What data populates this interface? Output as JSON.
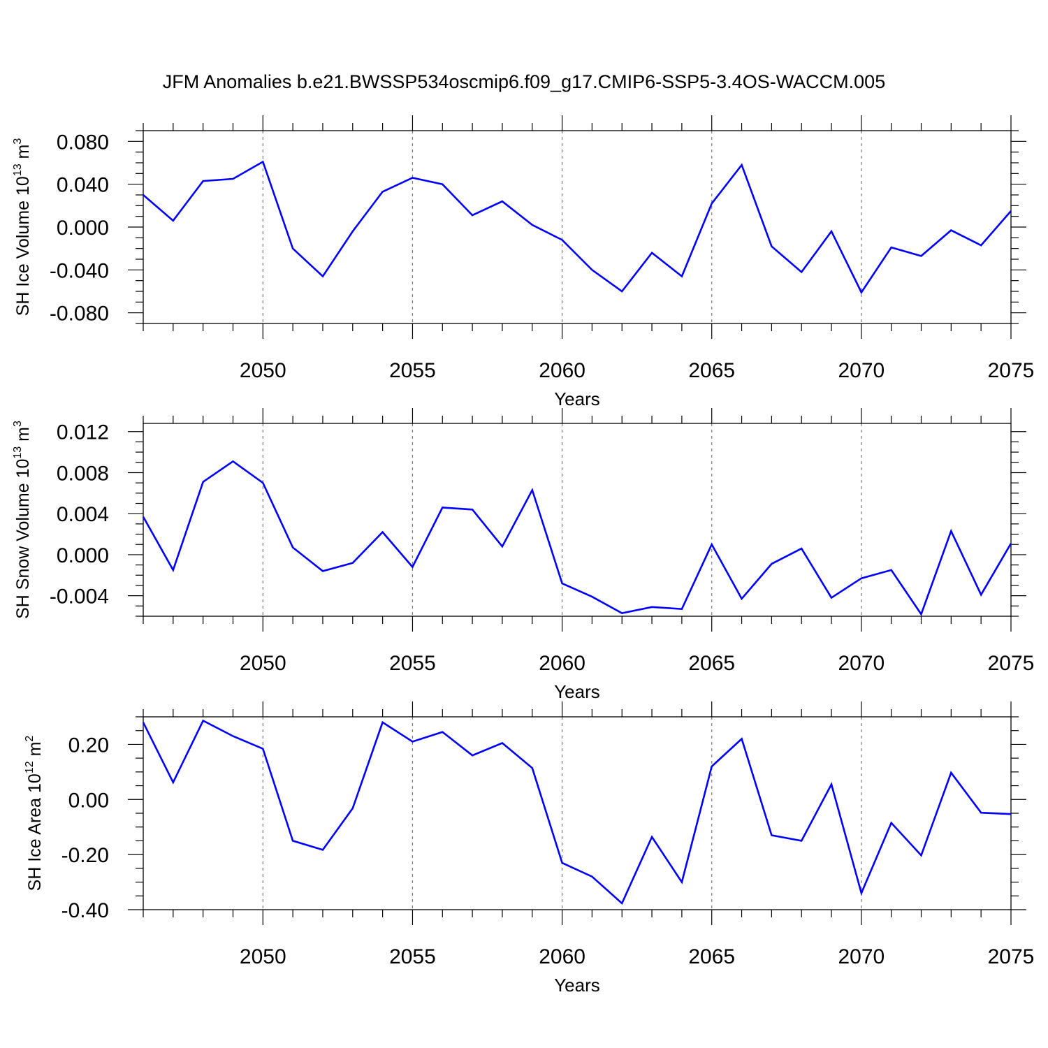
{
  "title": "JFM Anomalies b.e21.BWSSP534oscmip6.f09_g17.CMIP6-SSP5-3.4OS-WACCM.005",
  "line_color": "#0000ff",
  "chart_data": [
    {
      "type": "line",
      "name": "ice-volume",
      "ylabel": "SH Ice Volume 10",
      "ylabel_exp": "13",
      "ylabel_unit": "m",
      "ylabel_unit_exp": "3",
      "xlabel": "Years",
      "xlim": [
        2046,
        2075
      ],
      "ylim": [
        -0.09,
        0.09
      ],
      "xticks": [
        2050,
        2055,
        2060,
        2065,
        2070,
        2075
      ],
      "xtick_labels": [
        "2050",
        "2055",
        "2060",
        "2065",
        "2070",
        "2075"
      ],
      "yticks": [
        0.08,
        0.04,
        0.0,
        -0.04,
        -0.08
      ],
      "ytick_labels": [
        "0.080",
        "0.040",
        "0.000",
        "-0.040",
        "-0.080"
      ],
      "x": [
        2046,
        2047,
        2048,
        2049,
        2050,
        2051,
        2052,
        2053,
        2054,
        2055,
        2056,
        2057,
        2058,
        2059,
        2060,
        2061,
        2062,
        2063,
        2064,
        2065,
        2066,
        2067,
        2068,
        2069,
        2070,
        2071,
        2072,
        2073,
        2074,
        2075
      ],
      "y": [
        0.03,
        0.006,
        0.043,
        0.045,
        0.061,
        -0.02,
        -0.046,
        -0.004,
        0.033,
        0.046,
        0.04,
        0.011,
        0.024,
        0.002,
        -0.012,
        -0.04,
        -0.06,
        -0.024,
        -0.046,
        0.022,
        0.058,
        -0.018,
        -0.042,
        -0.004,
        -0.061,
        -0.019,
        -0.027,
        -0.003,
        -0.017,
        0.015
      ]
    },
    {
      "type": "line",
      "name": "snow-volume",
      "ylabel": "SH Snow Volume 10",
      "ylabel_exp": "13",
      "ylabel_unit": "m",
      "ylabel_unit_exp": "3",
      "xlabel": "Years",
      "xlim": [
        2046,
        2075
      ],
      "ylim": [
        -0.006,
        0.0128
      ],
      "xticks": [
        2050,
        2055,
        2060,
        2065,
        2070,
        2075
      ],
      "xtick_labels": [
        "2050",
        "2055",
        "2060",
        "2065",
        "2070",
        "2075"
      ],
      "yticks": [
        0.012,
        0.008,
        0.004,
        0.0,
        -0.004
      ],
      "ytick_labels": [
        "0.012",
        "0.008",
        "0.004",
        "0.000",
        "-0.004"
      ],
      "x": [
        2046,
        2047,
        2048,
        2049,
        2050,
        2051,
        2052,
        2053,
        2054,
        2055,
        2056,
        2057,
        2058,
        2059,
        2060,
        2061,
        2062,
        2063,
        2064,
        2065,
        2066,
        2067,
        2068,
        2069,
        2070,
        2071,
        2072,
        2073,
        2074,
        2075
      ],
      "y": [
        0.0037,
        -0.0015,
        0.0071,
        0.0091,
        0.007,
        0.0007,
        -0.0016,
        -0.0008,
        0.0022,
        -0.0012,
        0.0046,
        0.0044,
        0.0008,
        0.0063,
        -0.0028,
        -0.0041,
        -0.0057,
        -0.0051,
        -0.0053,
        0.001,
        -0.0043,
        -0.0009,
        0.0006,
        -0.0042,
        -0.0023,
        -0.0015,
        -0.0058,
        0.0023,
        -0.0039,
        0.0011
      ]
    },
    {
      "type": "line",
      "name": "ice-area",
      "ylabel": "SH Ice Area 10",
      "ylabel_exp": "12",
      "ylabel_unit": "m",
      "ylabel_unit_exp": "2",
      "xlabel": "Years",
      "xlim": [
        2046,
        2075
      ],
      "ylim": [
        -0.4,
        0.3
      ],
      "xticks": [
        2050,
        2055,
        2060,
        2065,
        2070,
        2075
      ],
      "xtick_labels": [
        "2050",
        "2055",
        "2060",
        "2065",
        "2070",
        "2075"
      ],
      "yticks": [
        0.2,
        0.0,
        -0.2,
        -0.4
      ],
      "ytick_labels": [
        "0.20",
        "0.00",
        "-0.20",
        "-0.40"
      ],
      "x": [
        2046,
        2047,
        2048,
        2049,
        2050,
        2051,
        2052,
        2053,
        2054,
        2055,
        2056,
        2057,
        2058,
        2059,
        2060,
        2061,
        2062,
        2063,
        2064,
        2065,
        2066,
        2067,
        2068,
        2069,
        2070,
        2071,
        2072,
        2073,
        2074,
        2075
      ],
      "y": [
        0.28,
        0.062,
        0.286,
        0.23,
        0.184,
        -0.15,
        -0.183,
        -0.032,
        0.28,
        0.21,
        0.245,
        0.16,
        0.205,
        0.114,
        -0.23,
        -0.28,
        -0.377,
        -0.136,
        -0.3,
        0.12,
        0.22,
        -0.13,
        -0.15,
        0.055,
        -0.34,
        -0.085,
        -0.203,
        0.097,
        -0.048,
        -0.053
      ]
    }
  ]
}
